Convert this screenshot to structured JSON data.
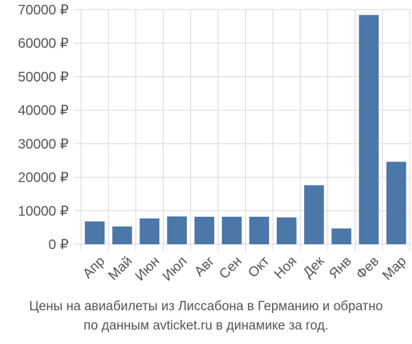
{
  "chart_data": {
    "type": "bar",
    "categories": [
      "Апр",
      "Май",
      "Июн",
      "Июл",
      "Авг",
      "Сен",
      "Окт",
      "Ноя",
      "Дек",
      "Янв",
      "Фев",
      "Мар"
    ],
    "values": [
      6800,
      5300,
      7700,
      8300,
      8200,
      8200,
      8200,
      8000,
      17600,
      4700,
      68400,
      24600
    ],
    "ylim": [
      0,
      70000
    ],
    "yticks": [
      0,
      10000,
      20000,
      30000,
      40000,
      50000,
      60000,
      70000
    ],
    "ytick_labels": [
      "0 ₽",
      "10000 ₽",
      "20000 ₽",
      "30000 ₽",
      "40000 ₽",
      "50000 ₽",
      "60000 ₽",
      "70000 ₽"
    ],
    "bar_color": "#4b77a9",
    "grid": true
  },
  "caption": {
    "line1": "Цены на авиабилеты из Лиссабона в Германию и обратно",
    "line2": "по данным avticket.ru в динамике за год."
  }
}
